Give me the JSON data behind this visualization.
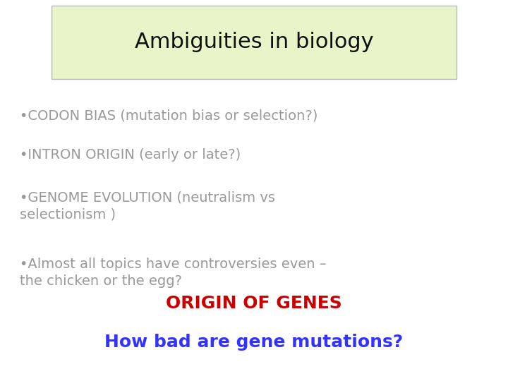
{
  "title": "Ambiguities in biology",
  "title_fontsize": 22,
  "title_color": "#111111",
  "title_bg_color": "#e8f5c8",
  "title_border_color": "#bbbbbb",
  "bullet_lines": [
    "•CODON BIAS (mutation bias or selection?)",
    "•INTRON ORIGIN (early or late?)",
    "•GENOME EVOLUTION (neutralism vs\nselectionism )",
    "•Almost all topics have controversies even –\nthe chicken or the egg?"
  ],
  "bullet_fontsize": 14,
  "bullet_color": "#999999",
  "highlight1": "ORIGIN OF GENES",
  "highlight1_color": "#cc0000",
  "highlight1_fontsize": 18,
  "highlight2": "How bad are gene mutations?",
  "highlight2_color": "#3333ff",
  "highlight2_fontsize": 18,
  "bg_color": "#ffffff"
}
